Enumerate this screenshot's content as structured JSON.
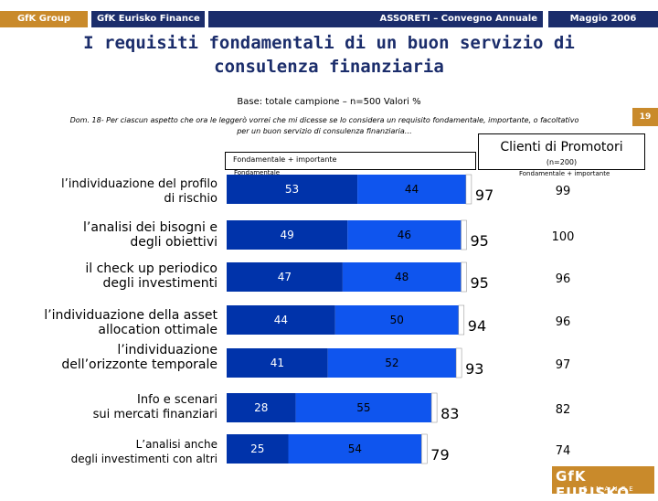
{
  "header": {
    "group": "GfK Group",
    "unit": "GfK Eurisko Finance",
    "conference": "ASSORETI – Convegno Annuale",
    "date": "Maggio 2006"
  },
  "title_line1": "I requisiti fondamentali di un buon servizio di",
  "title_line2": "consulenza finanziaria",
  "base": "Base: totale campione – n=500   Valori %",
  "page_number": "19",
  "question_line1": "Dom. 18- Per ciascun aspetto che ora le leggerò vorrei che mi dicesse se lo considera un requisito fondamentale, importante, o facoltativo",
  "question_line2": "per un buon servizio di consulenza finanziaria…",
  "clienti_box": {
    "title": "Clienti di Promotori",
    "n": "(n=200)"
  },
  "fi_box_label": "Fondamentale + importante",
  "legend_fondamentale": "Fondamentale",
  "legend_right": "Fondamentale + importante",
  "logo": {
    "main": "GfK EURISKO",
    "sub": "FINANCE"
  },
  "colors": {
    "bar_dark": "#0033aa",
    "bar_light": "#0f55ee",
    "header_navy": "#1b2d6b",
    "header_orange": "#c98a2b",
    "title": "#1b2d6b"
  },
  "chart_data": {
    "type": "bar",
    "orientation": "horizontal",
    "stacked": true,
    "categories": [
      [
        "l’individuazione del profilo",
        "di rischio"
      ],
      [
        "l’analisi dei bisogni e",
        "degli obiettivi"
      ],
      [
        "il check up periodico",
        "degli investimenti"
      ],
      [
        "l’individuazione della asset",
        "allocation ottimale"
      ],
      [
        "l’individuazione",
        "dell’orizzonte temporale"
      ],
      [
        "Info e scenari",
        "sui mercati finanziari"
      ],
      [
        "L’analisi anche",
        "degli investimenti  con altri"
      ]
    ],
    "series": [
      {
        "name": "Fondamentale",
        "values": [
          53,
          49,
          47,
          44,
          41,
          28,
          25
        ]
      },
      {
        "values": [
          44,
          46,
          48,
          50,
          52,
          55,
          54
        ]
      }
    ],
    "totals": [
      97,
      95,
      95,
      94,
      93,
      83,
      79
    ],
    "clienti_totals": [
      99,
      100,
      96,
      96,
      97,
      82,
      74
    ]
  }
}
